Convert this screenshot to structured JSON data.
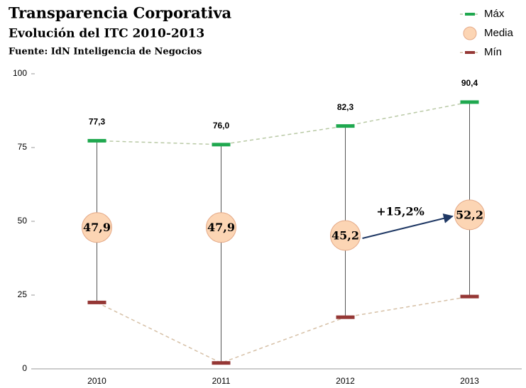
{
  "chart_data": {
    "type": "hilo",
    "title": "Transparencia Corporativa",
    "subtitle": "Evolución del ITC 2010-2013",
    "source": "Fuente: IdN Inteligencia de Negocios",
    "categories": [
      "2010",
      "2011",
      "2012",
      "2013"
    ],
    "series": [
      {
        "name": "Máx",
        "color": "#1fa84f",
        "values": [
          77.3,
          76.0,
          82.3,
          90.4
        ],
        "value_labels": [
          "77,3",
          "76,0",
          "82,3",
          "90,4"
        ]
      },
      {
        "name": "Media",
        "color": "#fcd5b4",
        "values": [
          47.9,
          47.9,
          45.2,
          52.2
        ],
        "value_labels": [
          "47,9",
          "47,9",
          "45,2",
          "52,2"
        ]
      },
      {
        "name": "Mín",
        "color": "#953735",
        "values": [
          22.5,
          2,
          17.5,
          24.5
        ]
      }
    ],
    "annotation": "+15,2%",
    "ylim": [
      0,
      100
    ],
    "yticks": [
      0,
      25,
      50,
      75,
      100
    ],
    "grid": false
  }
}
